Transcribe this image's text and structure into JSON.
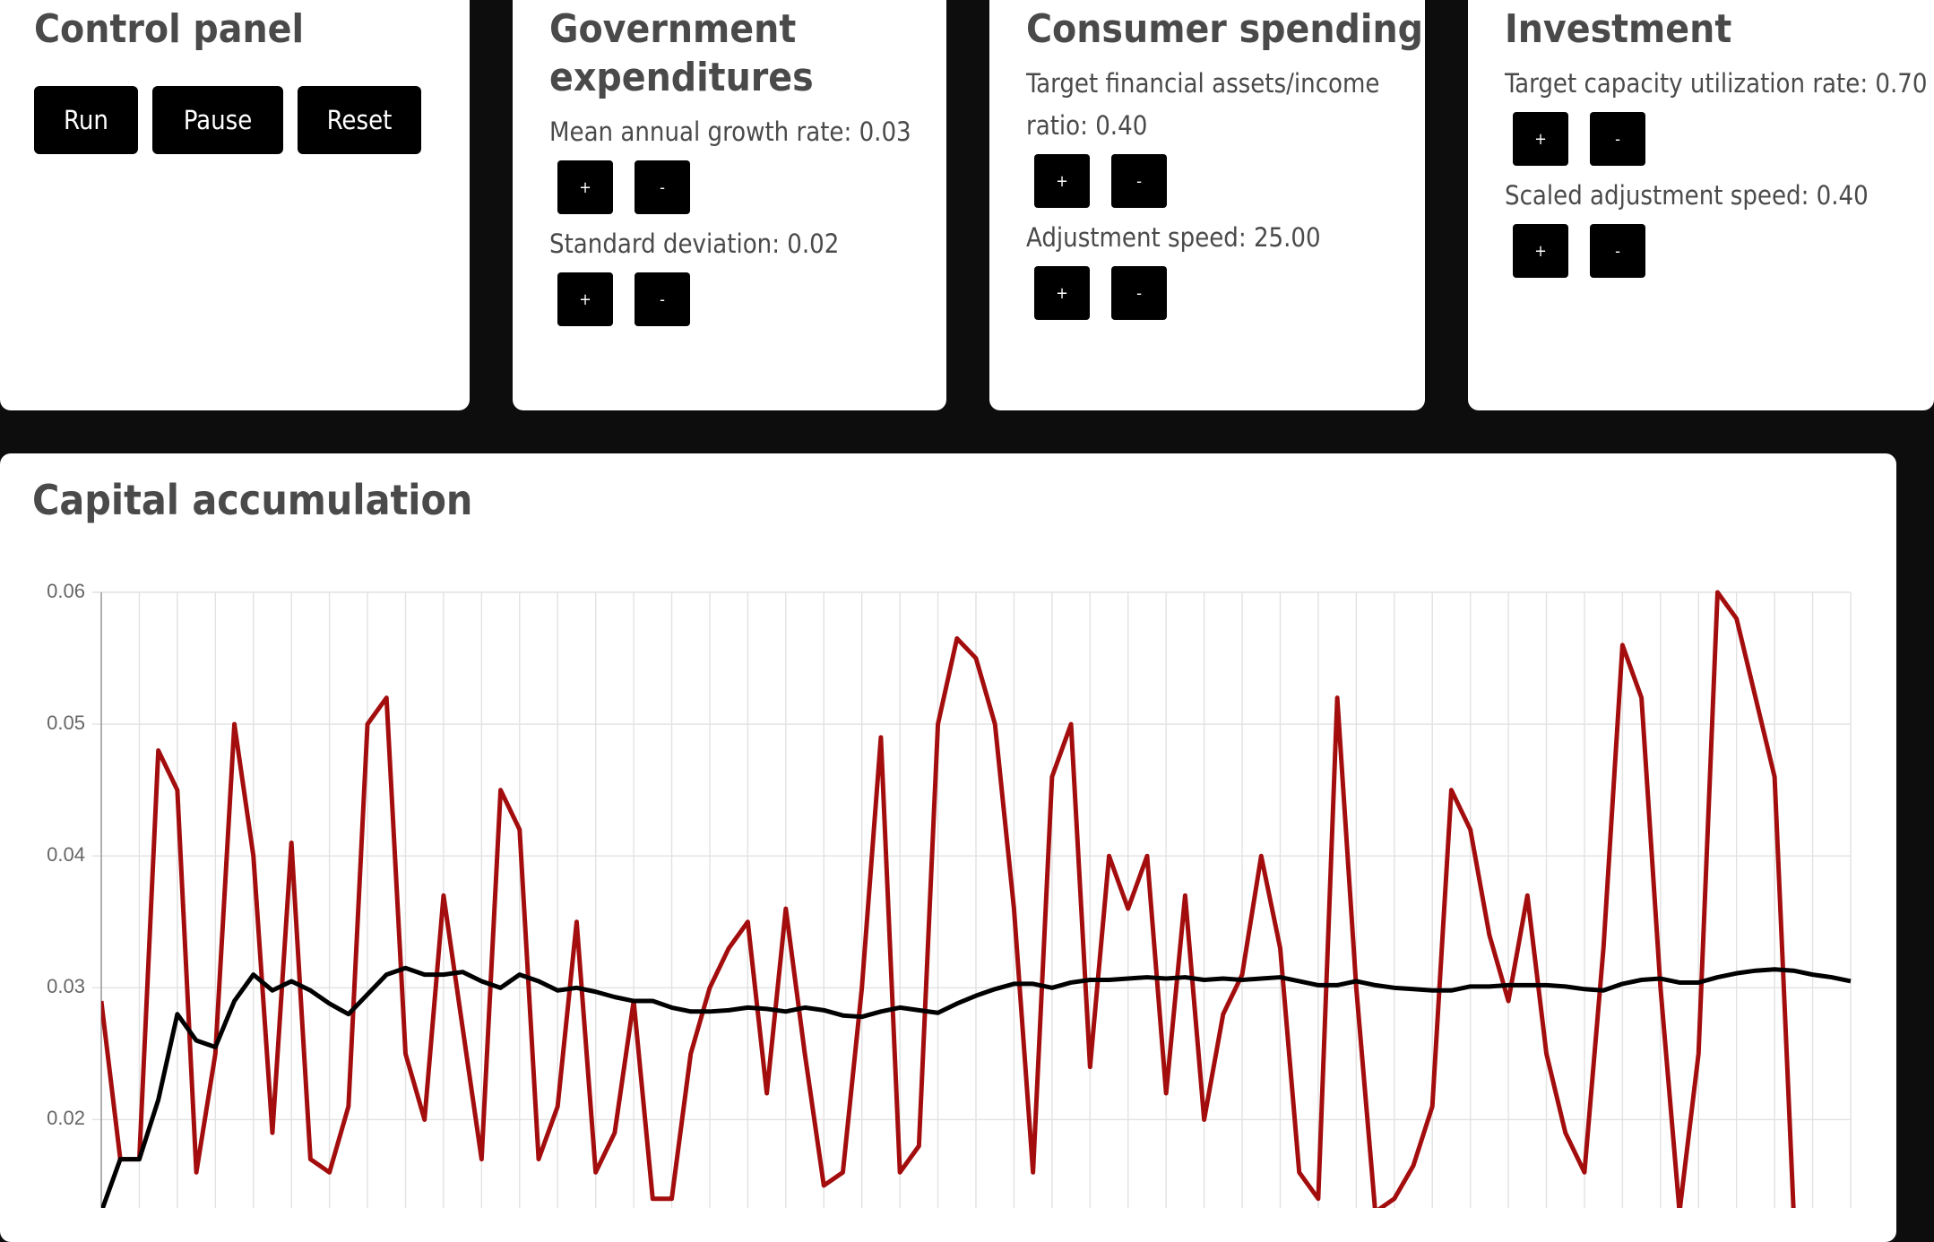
{
  "panels": [
    {
      "title": "Control panel",
      "buttons": [
        "Run",
        "Pause",
        "Reset"
      ]
    },
    {
      "title": "Government expenditures",
      "params": [
        {
          "label": "Mean annual growth rate: 0.03",
          "buttons": [
            "+",
            "-"
          ]
        },
        {
          "label": "Standard deviation: 0.02",
          "buttons": [
            "+",
            "-"
          ]
        }
      ]
    },
    {
      "title": "Consumer spending",
      "params": [
        {
          "label": "Target financial assets/income ratio: 0.40",
          "buttons": [
            "+",
            "-"
          ]
        },
        {
          "label": "Adjustment speed: 25.00",
          "buttons": [
            "+",
            "-"
          ]
        }
      ]
    },
    {
      "title": "Investment",
      "params": [
        {
          "label": "Target capacity utilization rate: 0.70",
          "buttons": [
            "+",
            "-"
          ]
        },
        {
          "label": "Scaled adjustment speed: 0.40",
          "buttons": [
            "+",
            "-"
          ]
        }
      ]
    }
  ],
  "chart_data": {
    "type": "line",
    "title": "Capital accumulation",
    "grid": true,
    "categories": [
      null,
      null,
      null,
      null,
      null,
      null,
      null,
      null,
      null,
      null,
      null,
      null,
      null,
      null,
      null,
      null,
      null,
      null,
      null,
      null,
      null,
      null,
      null,
      null,
      null,
      null,
      null,
      null,
      null,
      null,
      null,
      null,
      null,
      null,
      null,
      null,
      null,
      null,
      null,
      null,
      null,
      null,
      null,
      null,
      null,
      null,
      null,
      null,
      null,
      null,
      null,
      null,
      null,
      null,
      null,
      null,
      null,
      null,
      null,
      null,
      null,
      null,
      null,
      null,
      null,
      null,
      null,
      null,
      null,
      null,
      null,
      null,
      null,
      null,
      null,
      null,
      null,
      null,
      null,
      null,
      null,
      null,
      null,
      null,
      null,
      null,
      null,
      null,
      null,
      null,
      null,
      null,
      null
    ],
    "ylim": [
      0.0133,
      0.06
    ],
    "yticks": [
      0.02,
      0.03,
      0.04,
      0.05,
      0.06
    ],
    "series": [
      {
        "color": "#a30d0d",
        "values": [
          0.029,
          0.017,
          0.017,
          0.048,
          0.045,
          0.016,
          0.025,
          0.05,
          0.04,
          0.019,
          0.041,
          0.017,
          0.016,
          0.021,
          0.05,
          0.052,
          0.025,
          0.02,
          0.037,
          0.027,
          0.017,
          0.045,
          0.042,
          0.017,
          0.021,
          0.035,
          0.016,
          0.019,
          0.029,
          0.014,
          0.014,
          0.025,
          0.03,
          0.033,
          0.035,
          0.022,
          0.036,
          0.025,
          0.015,
          0.016,
          0.03,
          0.049,
          0.016,
          0.018,
          0.05,
          0.0565,
          0.055,
          0.05,
          0.036,
          0.016,
          0.046,
          0.05,
          0.024,
          0.04,
          0.036,
          0.04,
          0.022,
          0.037,
          0.02,
          0.028,
          0.031,
          0.04,
          0.033,
          0.016,
          0.014,
          0.052,
          0.03,
          0.013,
          0.014,
          0.0165,
          0.021,
          0.045,
          0.042,
          0.034,
          0.029,
          0.037,
          0.025,
          0.019,
          0.016,
          0.033,
          0.056,
          0.052,
          0.03,
          0.013,
          0.025,
          0.06,
          0.058,
          0.052,
          0.046,
          0.013,
          null,
          null,
          null
        ]
      },
      {
        "color": "#000000",
        "values": [
          0.013,
          0.017,
          0.017,
          0.0215,
          0.028,
          0.026,
          0.0255,
          0.029,
          0.031,
          0.0298,
          0.0305,
          0.0298,
          0.0288,
          0.028,
          0.0295,
          0.031,
          0.0315,
          0.031,
          0.031,
          0.0312,
          0.0305,
          0.03,
          0.031,
          0.0305,
          0.0298,
          0.03,
          0.0297,
          0.0293,
          0.029,
          0.029,
          0.0285,
          0.0282,
          0.0282,
          0.0283,
          0.0285,
          0.0284,
          0.0282,
          0.0285,
          0.0283,
          0.0279,
          0.0278,
          0.0282,
          0.0285,
          0.0283,
          0.0281,
          0.0288,
          0.0294,
          0.0299,
          0.0303,
          0.0303,
          0.03,
          0.0304,
          0.0306,
          0.0306,
          0.0307,
          0.0308,
          0.0307,
          0.0308,
          0.0306,
          0.0307,
          0.0306,
          0.0307,
          0.0308,
          0.0305,
          0.0302,
          0.0302,
          0.0305,
          0.0302,
          0.03,
          0.0299,
          0.0298,
          0.0298,
          0.0301,
          0.0301,
          0.0302,
          0.0302,
          0.0302,
          0.0301,
          0.0299,
          0.0298,
          0.0303,
          0.0306,
          0.0307,
          0.0304,
          0.0304,
          0.0308,
          0.0311,
          0.0313,
          0.0314,
          0.0313,
          0.031,
          0.0308,
          0.0305
        ]
      }
    ]
  }
}
